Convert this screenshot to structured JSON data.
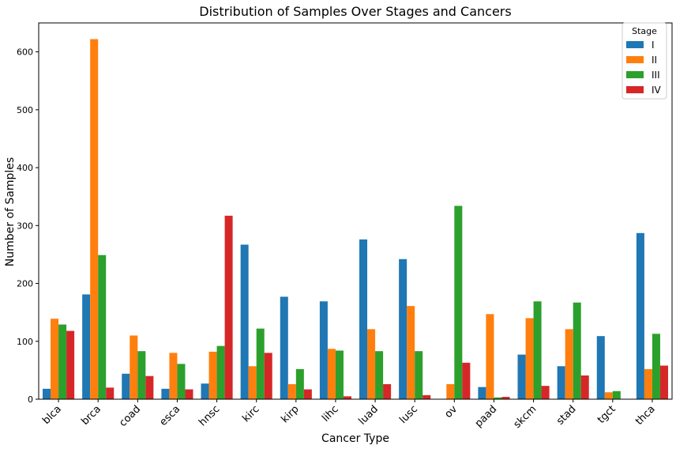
{
  "chart_data": {
    "type": "bar",
    "title": "Distribution of Samples Over Stages and Cancers",
    "xlabel": "Cancer Type",
    "ylabel": "Number of Samples",
    "ylim": [
      0,
      650
    ],
    "yticks": [
      0,
      100,
      200,
      300,
      400,
      500,
      600
    ],
    "grid": false,
    "legend": {
      "title": "Stage",
      "position": "top-right"
    },
    "categories": [
      "blca",
      "brca",
      "coad",
      "esca",
      "hnsc",
      "kirc",
      "kirp",
      "lihc",
      "luad",
      "lusc",
      "ov",
      "paad",
      "skcm",
      "stad",
      "tgct",
      "thca"
    ],
    "series": [
      {
        "name": "I",
        "color": "#1f77b4",
        "values": [
          18,
          181,
          44,
          18,
          27,
          267,
          177,
          169,
          276,
          242,
          0,
          21,
          77,
          57,
          109,
          287
        ]
      },
      {
        "name": "II",
        "color": "#ff7f0e",
        "values": [
          139,
          622,
          110,
          80,
          82,
          57,
          26,
          87,
          121,
          161,
          26,
          147,
          140,
          121,
          12,
          52
        ]
      },
      {
        "name": "III",
        "color": "#2ca02c",
        "values": [
          129,
          249,
          83,
          61,
          92,
          122,
          52,
          84,
          83,
          83,
          334,
          3,
          169,
          167,
          14,
          113
        ]
      },
      {
        "name": "IV",
        "color": "#d62728",
        "values": [
          118,
          20,
          40,
          17,
          317,
          80,
          17,
          5,
          26,
          7,
          63,
          4,
          23,
          41,
          0,
          58
        ]
      }
    ]
  }
}
